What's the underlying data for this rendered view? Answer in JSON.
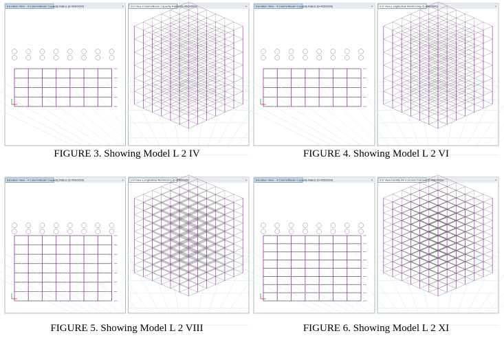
{
  "figures": [
    {
      "caption": "FIGURE 3. Showing Model L 2 IV",
      "left_tab": "Elevation View - 4 Column/Beam Capacity Ratios (D-456/2000)",
      "right_tab": "3-D View Column/Beam Capacity Ratios (D-456/2000)"
    },
    {
      "caption": "FIGURE 4. Showing Model L 2 VI",
      "left_tab": "Elevation View - 4 Column/Beam Capacity Ratios (D-456/2000)",
      "right_tab": "3-D View Longitudinal Reinforcing (D-456/2000)"
    },
    {
      "caption": "FIGURE 5. Showing Model L 2 VIII",
      "left_tab": "Elevation View - 4 Column/Beam Capacity Ratios (D-456/2000)",
      "right_tab": "3-D View Longitudinal Reinforcing (D-456/2000)"
    },
    {
      "caption": "FIGURE 6. Showing Model L 2 XI",
      "left_tab": "Elevation View - 4 Column/Beam Capacity Ratios (D-456/2000)",
      "right_tab": "3-D View Identify All Concrete Failures (D-456/2000)"
    }
  ]
}
